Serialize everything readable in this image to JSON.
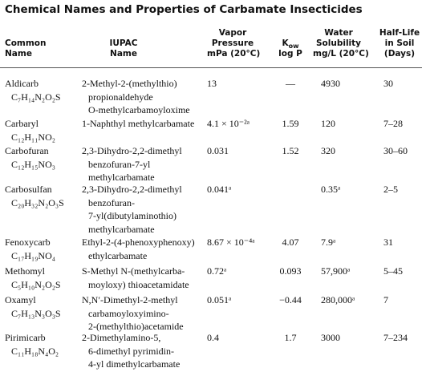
{
  "title": "Chemical Names and Properties of Carbamate Insecticides",
  "table": {
    "header": [
      [
        "Common",
        "Name"
      ],
      [
        "IUPAC",
        "Name"
      ],
      [
        "Vapor",
        "Pressure",
        "mPa (20°C)"
      ],
      [
        {
          "main": "K",
          "sub": "ow"
        },
        "log P"
      ],
      [
        "Water",
        "Solubility",
        "mg/L (20°C)"
      ],
      [
        "Half-Life",
        "in Soil",
        "(Days)"
      ]
    ],
    "rows": [
      {
        "common": [
          "Aldicarb",
          "C₇H₁₄N₂O₂S"
        ],
        "iupac": [
          "2-Methyl-2-(methylthio)",
          "propionaldehyde",
          "O-methylcarbamoyloxime"
        ],
        "vapor_pressure": "13",
        "log_p": "—",
        "solubility": "4930",
        "half_life": "30"
      },
      {
        "common": [
          "Carbaryl",
          "C₁₂H₁₁NO₂"
        ],
        "iupac": [
          "1-Naphthyl methylcarbamate"
        ],
        "vapor_pressure": "4.1 × 10⁻²ᵃ",
        "log_p": "1.59",
        "solubility": "120",
        "half_life": "7–28"
      },
      {
        "common": [
          "Carbofuran",
          "C₁₂H₁₅NO₃"
        ],
        "iupac": [
          "2,3-Dihydro-2,2-dimethyl",
          "benzofuran-7-yl",
          "methylcarbamate"
        ],
        "vapor_pressure": "0.031",
        "log_p": "1.52",
        "solubility": "320",
        "half_life": "30–60"
      },
      {
        "common": [
          "Carbosulfan",
          "C₂₀H₃₂N₂O₃S"
        ],
        "iupac": [
          "2,3-Dihydro-2,2-dimethyl",
          "benzofuran-",
          "7-yl(dibutylaminothio)",
          "methylcarbamate"
        ],
        "vapor_pressure": "0.041ᵃ",
        "log_p": null,
        "solubility": "0.35ᵃ",
        "half_life": "2–5"
      },
      {
        "common": [
          "Fenoxycarb",
          "C₁₇H₁₉NO₄"
        ],
        "iupac": [
          "Ethyl-2-(4-phenoxyphenoxy)",
          "ethylcarbamate"
        ],
        "vapor_pressure": "8.67 × 10⁻⁴ᵃ",
        "log_p": "4.07",
        "solubility": "7.9ᵃ",
        "half_life": "31"
      },
      {
        "common": [
          "Methomyl",
          "C₅H₁₀N₂O₂S"
        ],
        "iupac": [
          "S-Methyl N-(methylcarba-",
          "moyloxy) thioacetamidate"
        ],
        "vapor_pressure": "0.72ᵃ",
        "log_p": "0.093",
        "solubility": "57,900ᵃ",
        "half_life": "5–45"
      },
      {
        "common": [
          "Oxamyl",
          "C₇H₁₃N₃O₃S"
        ],
        "iupac": [
          "N,N′-Dimethyl-2-methyl",
          "carbamoyloxyimino-",
          "2-(methylthio)acetamide"
        ],
        "vapor_pressure": "0.051ᵃ",
        "log_p": "−0.44",
        "solubility": "280,000ᵃ",
        "half_life": "7"
      },
      {
        "common": [
          "Pirimicarb",
          "C₁₁H₁₈N₄O₂"
        ],
        "iupac": [
          "2-Dimethylamino-5,",
          "6-dimethyl pyrimidin-",
          "4-yl dimethylcarbamate"
        ],
        "vapor_pressure": "0.4",
        "log_p": "1.7",
        "solubility": "3000",
        "half_life": "7–234"
      }
    ]
  }
}
